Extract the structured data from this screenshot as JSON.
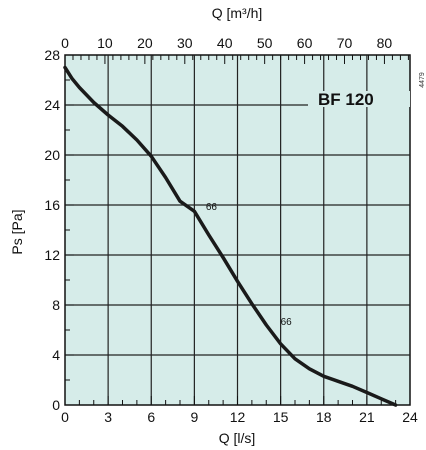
{
  "chart_data": {
    "type": "line",
    "title": "",
    "model_label": "BF 120",
    "xlabel": "Q [l/s]",
    "ylabel": "Ps [Pa]",
    "x2label": "Q [m³/h]",
    "xlim": [
      0,
      24
    ],
    "ylim": [
      0,
      28
    ],
    "x2lim": [
      0,
      86.4
    ],
    "x_ticks": [
      0,
      3,
      6,
      9,
      12,
      15,
      18,
      21,
      24
    ],
    "y_ticks": [
      0,
      4,
      8,
      12,
      16,
      20,
      24,
      28
    ],
    "x2_ticks": [
      0,
      10,
      20,
      30,
      40,
      50,
      60,
      70,
      80
    ],
    "grid": true,
    "background_color": "#d6ece9",
    "line_color": "#1a1a1a",
    "series": [
      {
        "x": [
          0,
          0.5,
          1,
          2,
          3,
          4,
          5,
          6,
          7,
          8,
          9,
          10,
          11,
          12,
          13,
          14,
          15,
          16,
          17,
          18,
          19,
          20,
          21,
          22,
          23
        ],
        "y": [
          27.0,
          26.1,
          25.4,
          24.2,
          23.2,
          22.3,
          21.2,
          19.9,
          18.2,
          16.3,
          15.5,
          13.6,
          11.8,
          9.9,
          8.1,
          6.4,
          4.9,
          3.7,
          2.9,
          2.3,
          1.9,
          1.5,
          1.0,
          0.5,
          0.0
        ]
      }
    ],
    "annotations": [
      {
        "text": "66",
        "x": 9.8,
        "y": 15.6
      },
      {
        "text": "66",
        "x": 15.0,
        "y": 6.4
      }
    ],
    "side_label": "4479"
  }
}
